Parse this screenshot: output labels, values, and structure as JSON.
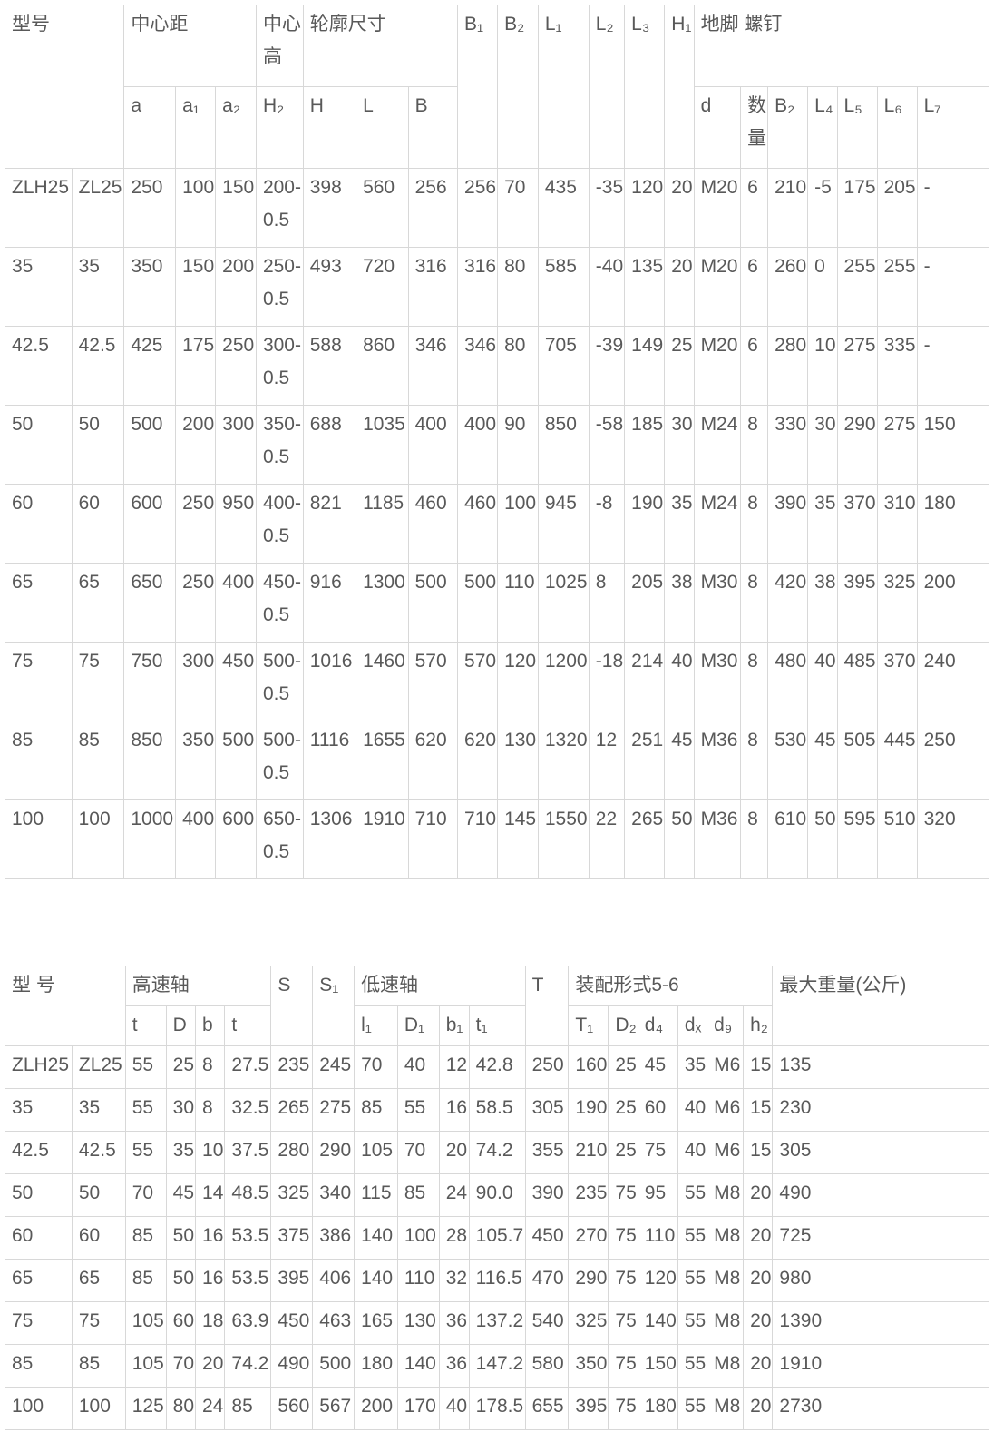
{
  "colors": {
    "text": "#595959",
    "border": "#d8d8d8",
    "background": "#ffffff"
  },
  "dimension_table": {
    "h_model": "型号",
    "h_center_distance": "中心距",
    "h_center_height": "中心高",
    "h_outline_size": "轮廓尺寸",
    "h_B1": "B₁",
    "h_B2": "B₂",
    "h_L1": "L₁",
    "h_L2": "L₂",
    "h_L3": "L₃",
    "h_H1": "H₁",
    "h_anchor_bolt": "地脚 螺钉",
    "subheaders": [
      "a",
      "a₁",
      "a₂",
      "H₂",
      "H",
      "L",
      "B",
      "d",
      "数量",
      "B₂",
      "L₄",
      "L₅",
      "L₆",
      "L₇"
    ],
    "rows": [
      [
        "ZLH25",
        "ZL25",
        "250",
        "100",
        "150",
        "200-0.5",
        "398",
        "560",
        "256",
        "256",
        "70",
        "435",
        "-35",
        "120",
        "20",
        "M20",
        "6",
        "210",
        "-5",
        "175",
        "205",
        "-"
      ],
      [
        "35",
        "35",
        "350",
        "150",
        "200",
        "250-0.5",
        "493",
        "720",
        "316",
        "316",
        "80",
        "585",
        "-40",
        "135",
        "20",
        "M20",
        "6",
        "260",
        "0",
        "255",
        "255",
        "-"
      ],
      [
        "42.5",
        "42.5",
        "425",
        "175",
        "250",
        "300-0.5",
        "588",
        "860",
        "346",
        "346",
        "80",
        "705",
        "-39",
        "149",
        "25",
        "M20",
        "6",
        "280",
        "10",
        "275",
        "335",
        "-"
      ],
      [
        "50",
        "50",
        "500",
        "200",
        "300",
        "350-0.5",
        "688",
        "1035",
        "400",
        "400",
        "90",
        "850",
        "-58",
        "185",
        "30",
        "M24",
        "8",
        "330",
        "30",
        "290",
        "275",
        "150"
      ],
      [
        "60",
        "60",
        "600",
        "250",
        "950",
        "400-0.5",
        "821",
        "1185",
        "460",
        "460",
        "100",
        "945",
        "-8",
        "190",
        "35",
        "M24",
        "8",
        "390",
        "35",
        "370",
        "310",
        "180"
      ],
      [
        "65",
        "65",
        "650",
        "250",
        "400",
        "450-0.5",
        "916",
        "1300",
        "500",
        "500",
        "110",
        "1025",
        "8",
        "205",
        "38",
        "M30",
        "8",
        "420",
        "38",
        "395",
        "325",
        "200"
      ],
      [
        "75",
        "75",
        "750",
        "300",
        "450",
        "500-0.5",
        "1016",
        "1460",
        "570",
        "570",
        "120",
        "1200",
        "-18",
        "214",
        "40",
        "M30",
        "8",
        "480",
        "40",
        "485",
        "370",
        "240"
      ],
      [
        "85",
        "85",
        "850",
        "350",
        "500",
        "500-0.5",
        "1116",
        "1655",
        "620",
        "620",
        "130",
        "1320",
        "12",
        "251",
        "45",
        "M36",
        "8",
        "530",
        "45",
        "505",
        "445",
        "250"
      ],
      [
        "100",
        "100",
        "1000",
        "400",
        "600",
        "650-0.5",
        "1306",
        "1910",
        "710",
        "710",
        "145",
        "1550",
        "22",
        "265",
        "50",
        "M36",
        "8",
        "610",
        "50",
        "595",
        "510",
        "320"
      ]
    ]
  },
  "shaft_table": {
    "h_model": "型 号",
    "h_high_speed_shaft": "高速轴",
    "h_S": "S",
    "h_S1": "S₁",
    "h_low_speed_shaft": "低速轴",
    "h_T": "T",
    "h_assembly_form": "装配形式5-6",
    "h_max_weight": "最大重量(公斤)",
    "subheaders": [
      "t",
      "D",
      "b",
      "t",
      "l₁",
      "D₁",
      "b₁",
      "t₁",
      "T₁",
      "D₂",
      "d₄",
      "dₓ",
      "d₉",
      "h₂"
    ],
    "rows": [
      [
        "ZLH25",
        "ZL25",
        "55",
        "25",
        "8",
        "27.5",
        "235",
        "245",
        "70",
        "40",
        "12",
        "42.8",
        "250",
        "160",
        "25",
        "45",
        "35",
        "M6",
        "15",
        "135"
      ],
      [
        "35",
        "35",
        "55",
        "30",
        "8",
        "32.5",
        "265",
        "275",
        "85",
        "55",
        "16",
        "58.5",
        "305",
        "190",
        "25",
        "60",
        "40",
        "M6",
        "15",
        "230"
      ],
      [
        "42.5",
        "42.5",
        "55",
        "35",
        "10",
        "37.5",
        "280",
        "290",
        "105",
        "70",
        "20",
        "74.2",
        "355",
        "210",
        "25",
        "75",
        "40",
        "M6",
        "15",
        "305"
      ],
      [
        "50",
        "50",
        "70",
        "45",
        "14",
        "48.5",
        "325",
        "340",
        "115",
        "85",
        "24",
        "90.0",
        "390",
        "235",
        "75",
        "95",
        "55",
        "M8",
        "20",
        "490"
      ],
      [
        "60",
        "60",
        "85",
        "50",
        "16",
        "53.5",
        "375",
        "386",
        "140",
        "100",
        "28",
        "105.7",
        "450",
        "270",
        "75",
        "110",
        "55",
        "M8",
        "20",
        "725"
      ],
      [
        "65",
        "65",
        "85",
        "50",
        "16",
        "53.5",
        "395",
        "406",
        "140",
        "110",
        "32",
        "116.5",
        "470",
        "290",
        "75",
        "120",
        "55",
        "M8",
        "20",
        "980"
      ],
      [
        "75",
        "75",
        "105",
        "60",
        "18",
        "63.9",
        "450",
        "463",
        "165",
        "130",
        "36",
        "137.2",
        "540",
        "325",
        "75",
        "140",
        "55",
        "M8",
        "20",
        "1390"
      ],
      [
        "85",
        "85",
        "105",
        "70",
        "20",
        "74.2",
        "490",
        "500",
        "180",
        "140",
        "36",
        "147.2",
        "580",
        "350",
        "75",
        "150",
        "55",
        "M8",
        "20",
        "1910"
      ],
      [
        "100",
        "100",
        "125",
        "80",
        "24",
        "85",
        "560",
        "567",
        "200",
        "170",
        "40",
        "178.5",
        "655",
        "395",
        "75",
        "180",
        "55",
        "M8",
        "20",
        "2730"
      ]
    ]
  }
}
